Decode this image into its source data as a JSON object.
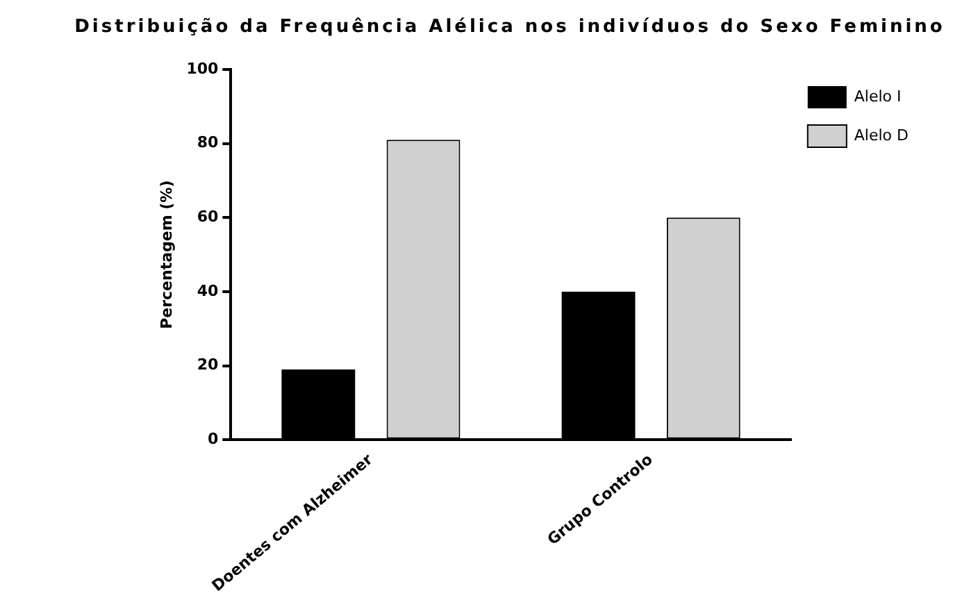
{
  "chart_data": {
    "type": "bar",
    "title": "Distribuição da Frequência Alélica nos indivíduos do Sexo Feminino",
    "ylabel": "Percentagem (%)",
    "categories": [
      "Doentes com Alzheimer",
      "Grupo Controlo"
    ],
    "series": [
      {
        "name": "Alelo I",
        "color": "#000000",
        "values": [
          19,
          40
        ]
      },
      {
        "name": "Alelo D",
        "color": "#d0d0d0",
        "values": [
          81,
          60
        ]
      }
    ],
    "ylim": [
      0,
      100
    ],
    "yticks": [
      0,
      20,
      40,
      60,
      80,
      100
    ],
    "grid": false,
    "legend": "top right"
  }
}
